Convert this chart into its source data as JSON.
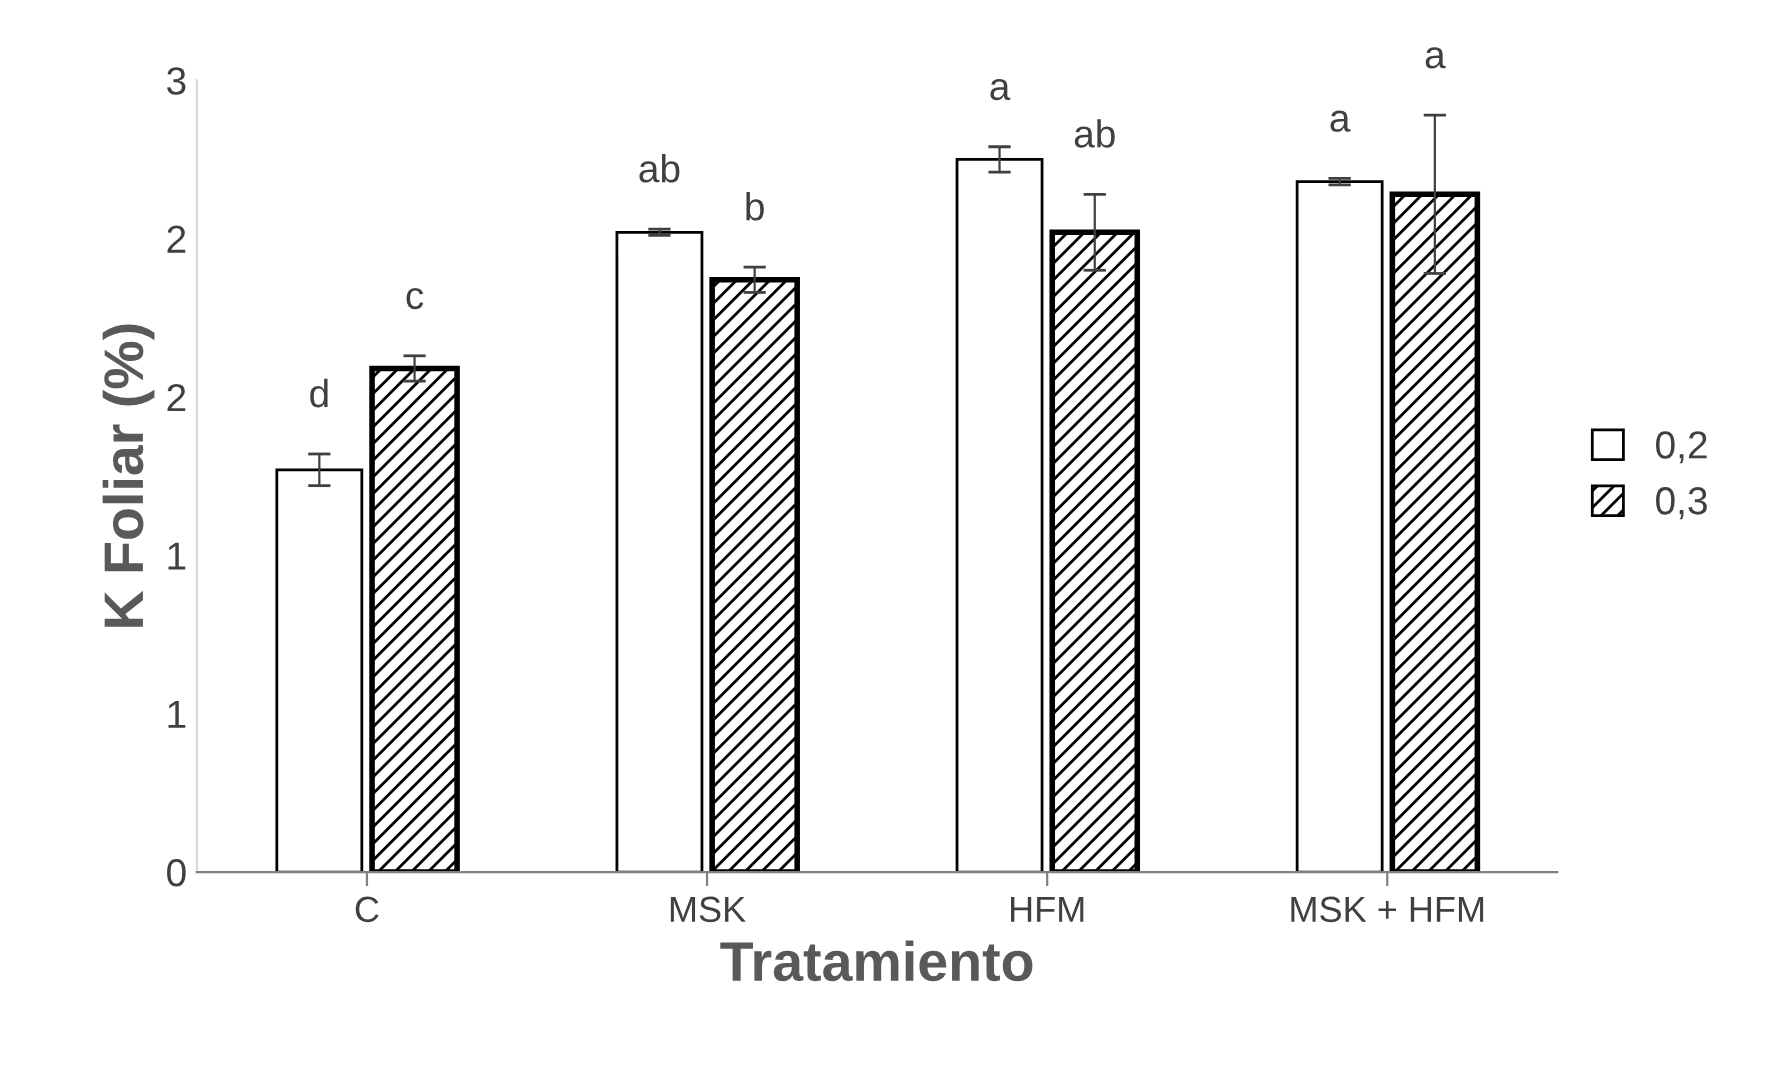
{
  "chart_data": {
    "type": "bar",
    "xlabel": "Tratamiento",
    "ylabel": "K Foliar (%)",
    "categories": [
      "C",
      "MSK",
      "HFM",
      "MSK + HFM"
    ],
    "series": [
      {
        "name": "0,2",
        "color": "#ffffff",
        "values": [
          1.27,
          2.02,
          2.25,
          2.18
        ],
        "errors": [
          0.05,
          0.01,
          0.04,
          0.01
        ]
      },
      {
        "name": "0,3",
        "color": "#000000",
        "values": [
          1.59,
          1.87,
          2.02,
          2.14
        ],
        "errors": [
          0.04,
          0.04,
          0.12,
          0.25
        ]
      }
    ],
    "ylim": [
      0,
      2.5
    ],
    "yticks": [
      0,
      {
        "value": 0.5,
        "label": "1"
      },
      1,
      {
        "value": 1.5,
        "label": "2"
      },
      2,
      {
        "value": 2.5,
        "label": "3"
      }
    ],
    "annotations": [
      "d",
      "c",
      "ab",
      "b",
      "a",
      "ab",
      "a",
      "a"
    ],
    "grid": false,
    "legend": "right"
  }
}
